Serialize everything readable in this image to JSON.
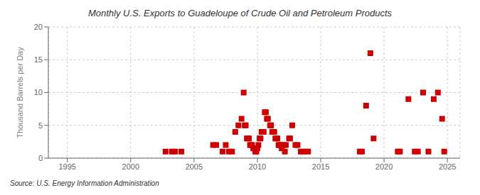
{
  "chart_data": {
    "type": "scatter",
    "title": "Monthly U.S. Exports to Guadeloupe of Crude Oil and Petroleum Products",
    "y_label": "Thousand Barrels per Day",
    "annotations": [
      "Source: U.S. Energy Information Administration"
    ],
    "color": "#cc0000",
    "marker": "square",
    "grid": true,
    "xlim": [
      1993.5,
      2026.0
    ],
    "xticks": [
      1995,
      2000,
      2005,
      2010,
      2015,
      2020,
      2025
    ],
    "ylim": [
      0,
      20
    ],
    "yticks": [
      0,
      5,
      10,
      15,
      20
    ],
    "x": [
      2002.75,
      2003.25,
      2003.5,
      2004.0,
      2006.5,
      2006.75,
      2007.25,
      2007.5,
      2007.75,
      2008.0,
      2008.25,
      2008.5,
      2008.75,
      2008.92,
      2009.0,
      2009.08,
      2009.17,
      2009.25,
      2009.33,
      2009.42,
      2009.5,
      2009.58,
      2009.67,
      2009.75,
      2009.83,
      2009.92,
      2010.0,
      2010.08,
      2010.17,
      2010.25,
      2010.33,
      2010.42,
      2010.5,
      2010.58,
      2010.67,
      2010.75,
      2010.83,
      2011.0,
      2011.08,
      2011.17,
      2011.25,
      2011.33,
      2011.42,
      2011.5,
      2011.58,
      2011.67,
      2011.75,
      2011.83,
      2011.92,
      2012.0,
      2012.08,
      2012.17,
      2012.25,
      2012.5,
      2012.58,
      2012.75,
      2013.0,
      2013.17,
      2013.42,
      2013.67,
      2014.0,
      2018.08,
      2018.25,
      2018.58,
      2018.92,
      2019.17,
      2021.08,
      2021.25,
      2021.92,
      2022.42,
      2022.67,
      2023.08,
      2023.5,
      2023.92,
      2024.25,
      2024.58,
      2024.75
    ],
    "values": [
      1.0,
      1.0,
      1.0,
      1.0,
      2.0,
      2.0,
      1.0,
      2.0,
      1.0,
      1.0,
      4.0,
      5.0,
      6.0,
      10.0,
      5.0,
      5.0,
      3.0,
      3.0,
      3.0,
      2.0,
      2.0,
      2.0,
      1.5,
      1.5,
      1.0,
      1.0,
      1.5,
      2.0,
      3.0,
      3.0,
      4.0,
      4.0,
      4.0,
      7.0,
      7.0,
      6.0,
      6.0,
      5.0,
      5.0,
      4.0,
      4.0,
      4.0,
      3.0,
      3.0,
      3.0,
      2.0,
      2.0,
      2.0,
      1.5,
      2.0,
      2.0,
      1.0,
      2.0,
      3.0,
      3.0,
      5.0,
      2.0,
      2.0,
      1.0,
      1.0,
      1.0,
      1.0,
      1.0,
      8.0,
      16.0,
      3.0,
      1.0,
      1.0,
      9.0,
      1.0,
      1.0,
      10.0,
      1.0,
      9.0,
      10.0,
      6.0,
      1.0
    ]
  }
}
